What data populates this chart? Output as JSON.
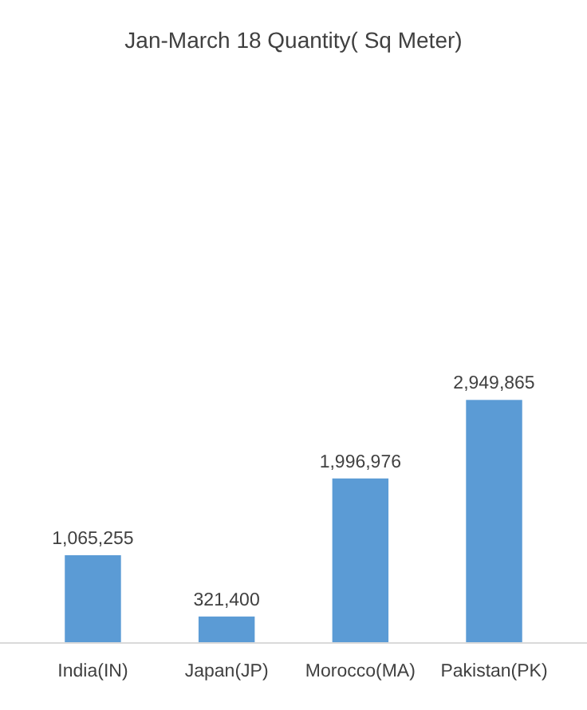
{
  "chart_data": {
    "type": "bar",
    "title": "Jan-March 18 Quantity( Sq Meter)",
    "categories": [
      "India(IN)",
      "Japan(JP)",
      "Morocco(MA)",
      "Pakistan(PK)"
    ],
    "values": [
      1065255,
      321400,
      1996976,
      2949865
    ],
    "value_labels": [
      "1,065,255",
      "321,400",
      "1,996,976",
      "2,949,865"
    ],
    "color": "#5b9bd5"
  }
}
